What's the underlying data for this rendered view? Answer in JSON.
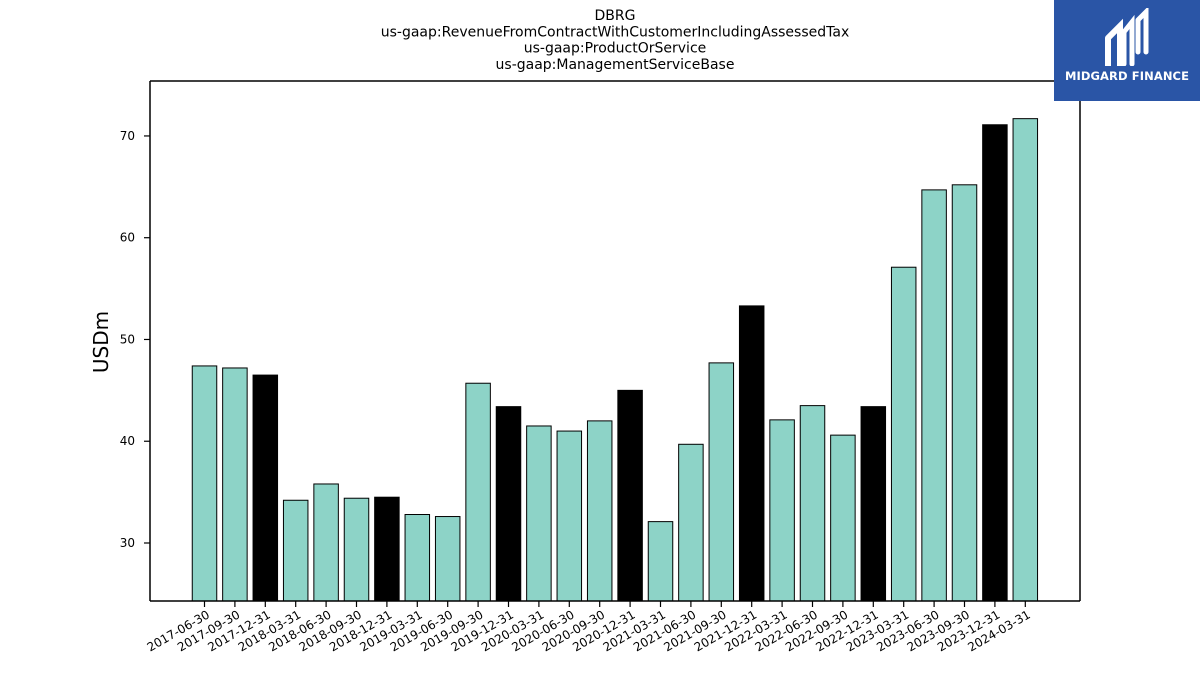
{
  "logo": {
    "text": "MIDGARD FINANCE",
    "icon": "midgard-m-logo-icon",
    "background": "#2a55a6"
  },
  "chart_data": {
    "type": "bar",
    "title_lines": [
      "DBRG",
      "us-gaap:RevenueFromContractWithCustomerIncludingAssessedTax",
      "us-gaap:ProductOrService",
      "us-gaap:ManagementServiceBase"
    ],
    "xlabel": "",
    "ylabel": "USDm",
    "ylim": [
      24.3,
      75.4
    ],
    "yticks": [
      30,
      40,
      50,
      60,
      70
    ],
    "grid": false,
    "colors": {
      "quarter": "#8dd3c7",
      "year_end": "#000000",
      "edge": "#000000"
    },
    "categories": [
      "2017-06-30",
      "2017-09-30",
      "2017-12-31",
      "2018-03-31",
      "2018-06-30",
      "2018-09-30",
      "2018-12-31",
      "2019-03-31",
      "2019-06-30",
      "2019-09-30",
      "2019-12-31",
      "2020-03-31",
      "2020-06-30",
      "2020-09-30",
      "2020-12-31",
      "2021-03-31",
      "2021-06-30",
      "2021-09-30",
      "2021-12-31",
      "2022-03-31",
      "2022-06-30",
      "2022-09-30",
      "2022-12-31",
      "2023-03-31",
      "2023-06-30",
      "2023-09-30",
      "2023-12-31",
      "2024-03-31"
    ],
    "values": [
      47.4,
      47.2,
      46.5,
      34.2,
      35.8,
      34.4,
      34.5,
      32.8,
      32.6,
      45.7,
      43.4,
      41.5,
      41.0,
      42.0,
      45.0,
      32.1,
      39.7,
      47.7,
      53.3,
      42.1,
      43.5,
      40.6,
      43.4,
      57.1,
      64.7,
      65.2,
      71.1,
      71.7
    ]
  }
}
